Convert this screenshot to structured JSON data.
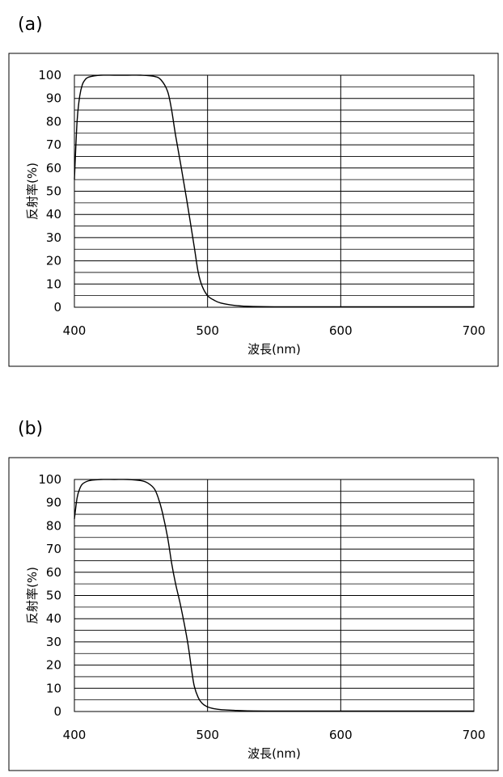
{
  "panels": [
    {
      "label": "(a)"
    },
    {
      "label": "(b)"
    }
  ],
  "chart_data": [
    {
      "type": "line",
      "title": "",
      "xlabel": "波長(nm)",
      "ylabel": "反射率(%)",
      "xlim": [
        400,
        700
      ],
      "ylim": [
        0,
        100
      ],
      "xticks": [
        400,
        500,
        600,
        700
      ],
      "yticks": [
        0,
        10,
        20,
        30,
        40,
        50,
        60,
        70,
        80,
        90,
        100
      ],
      "grid": true,
      "line_color": "#000000",
      "series": [
        {
          "x": [
            400,
            402,
            404,
            406,
            408,
            410,
            415,
            420,
            430,
            440,
            450,
            460,
            465,
            470,
            473,
            476,
            480,
            485,
            490,
            493,
            496,
            500,
            505,
            510,
            520,
            530,
            550,
            600,
            700
          ],
          "y": [
            55,
            80,
            91,
            96,
            98,
            99,
            99.7,
            100,
            100,
            100,
            100,
            99.5,
            98,
            93,
            85,
            74,
            61,
            44,
            26,
            15,
            9,
            5,
            3,
            1.8,
            0.8,
            0.4,
            0.2,
            0.2,
            0.2
          ]
        }
      ]
    },
    {
      "type": "line",
      "title": "",
      "xlabel": "波長(nm)",
      "ylabel": "反射率(%)",
      "xlim": [
        400,
        700
      ],
      "ylim": [
        0,
        100
      ],
      "xticks": [
        400,
        500,
        600,
        700
      ],
      "yticks": [
        0,
        10,
        20,
        30,
        40,
        50,
        60,
        70,
        80,
        90,
        100
      ],
      "grid": true,
      "line_color": "#000000",
      "series": [
        {
          "x": [
            400,
            402,
            404,
            406,
            410,
            415,
            420,
            430,
            440,
            450,
            455,
            460,
            463,
            466,
            470,
            473,
            476,
            480,
            485,
            488,
            490,
            493,
            496,
            500,
            505,
            510,
            520,
            530,
            550,
            600,
            700
          ],
          "y": [
            83,
            92,
            96,
            98,
            99.3,
            99.8,
            100,
            100,
            100,
            99.5,
            98.5,
            96,
            92,
            86,
            75,
            64,
            55,
            45,
            30,
            18,
            11,
            6,
            3.5,
            2,
            1.2,
            0.8,
            0.5,
            0.3,
            0.2,
            0.2,
            0.2
          ]
        }
      ]
    }
  ]
}
